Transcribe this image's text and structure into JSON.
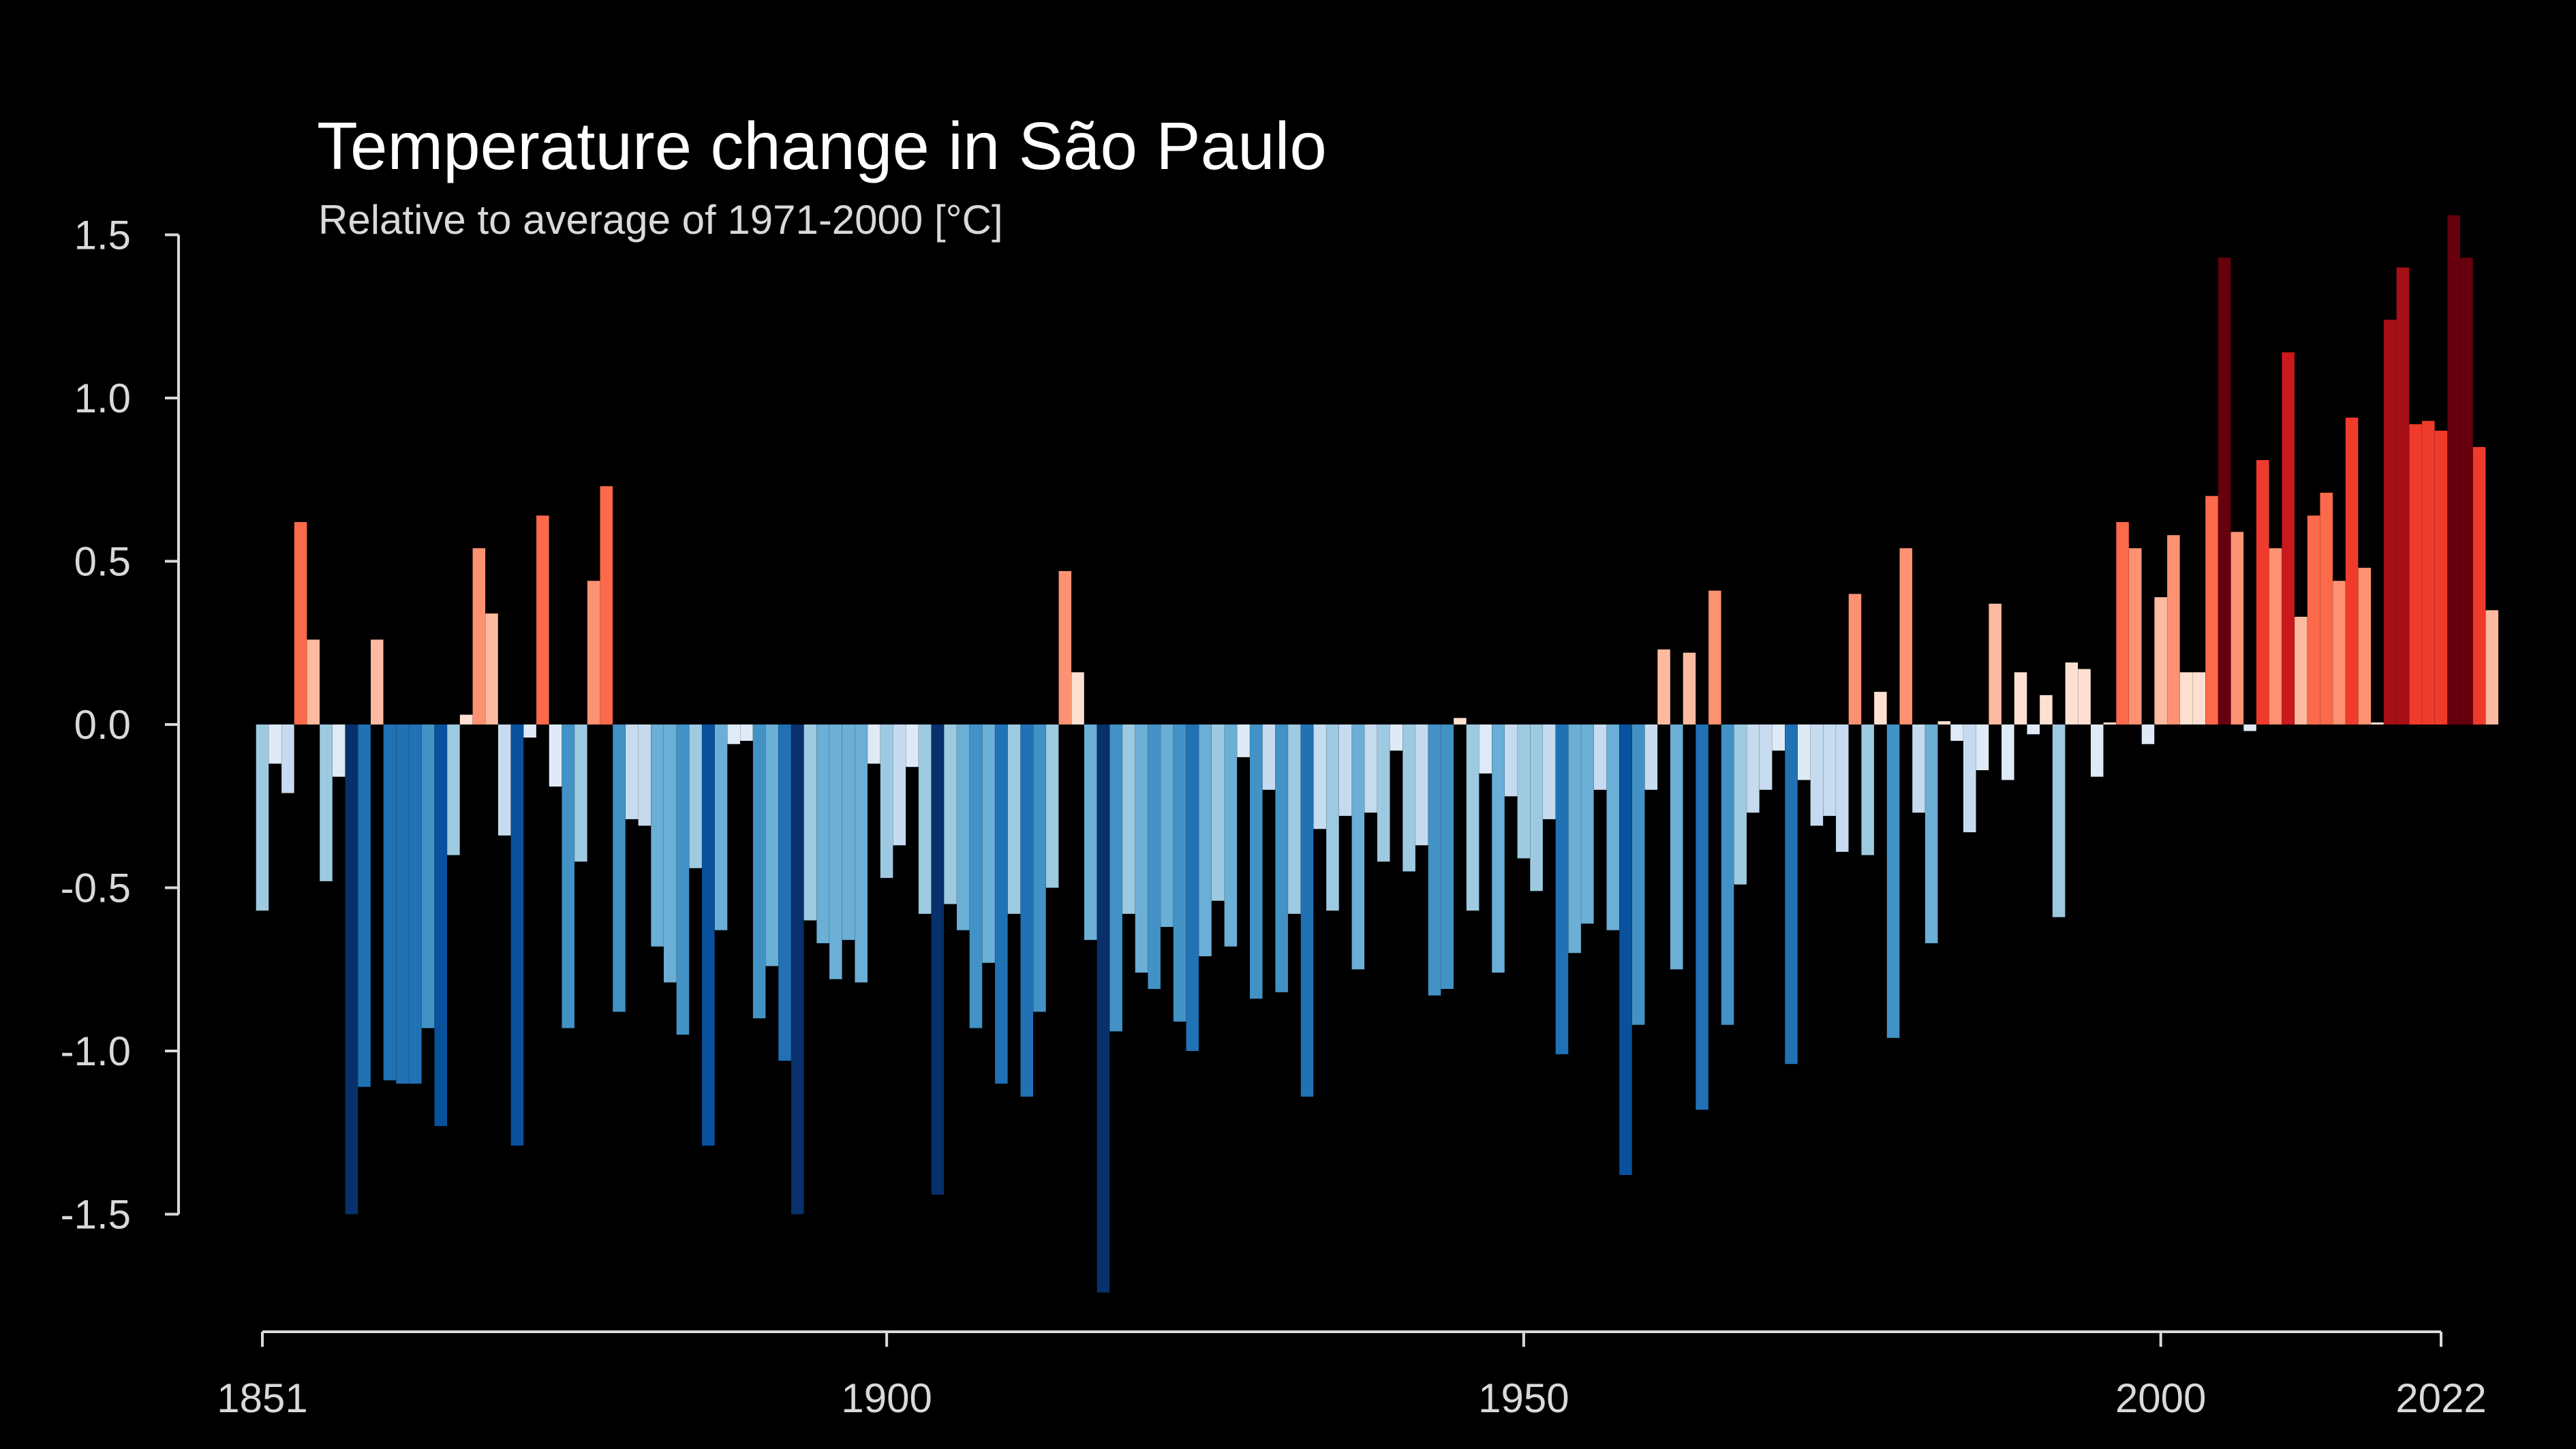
{
  "chart_data": {
    "type": "bar",
    "title": "Temperature change in São Paulo",
    "subtitle": "Relative to average of 1971-2000  [°C]",
    "xlabel": "",
    "ylabel": "",
    "x_start": 1851,
    "x_end": 2022,
    "ylim": [
      -1.75,
      1.6
    ],
    "yticks": [
      1.5,
      1.0,
      0.5,
      0.0,
      -0.5,
      -1.0,
      -1.5
    ],
    "ytick_labels": [
      "1.5",
      "1.0",
      "0.5",
      "0.0",
      "-0.5",
      "-1.0",
      "-1.5"
    ],
    "xticks": [
      1851,
      1900,
      1950,
      2000,
      2022
    ],
    "xtick_labels": [
      "1851",
      "1900",
      "1950",
      "2000",
      "2022"
    ],
    "grid": false,
    "values": [
      -0.57,
      -0.12,
      -0.21,
      0.62,
      0.26,
      -0.48,
      -0.16,
      -1.5,
      -1.11,
      0.26,
      -1.09,
      -1.1,
      -1.1,
      -0.93,
      -1.23,
      -0.4,
      0.03,
      0.54,
      0.34,
      -0.34,
      -1.29,
      -0.04,
      0.64,
      -0.19,
      -0.93,
      -0.42,
      0.44,
      0.73,
      -0.88,
      -0.29,
      -0.31,
      -0.68,
      -0.79,
      -0.95,
      -0.44,
      -1.29,
      -0.63,
      -0.06,
      -0.05,
      -0.9,
      -0.74,
      -1.03,
      -1.5,
      -0.6,
      -0.67,
      -0.78,
      -0.66,
      -0.79,
      -0.12,
      -0.47,
      -0.37,
      -0.13,
      -0.58,
      -1.44,
      -0.55,
      -0.63,
      -0.93,
      -0.73,
      -1.1,
      -0.58,
      -1.14,
      -0.88,
      -0.5,
      0.47,
      0.16,
      -0.66,
      -1.74,
      -0.94,
      -0.58,
      -0.76,
      -0.81,
      -0.62,
      -0.91,
      -1.0,
      -0.71,
      -0.54,
      -0.68,
      -0.1,
      -0.84,
      -0.2,
      -0.82,
      -0.58,
      -1.14,
      -0.32,
      -0.57,
      -0.28,
      -0.75,
      -0.27,
      -0.42,
      -0.08,
      -0.45,
      -0.37,
      -0.83,
      -0.81,
      0.02,
      -0.57,
      -0.15,
      -0.76,
      -0.22,
      -0.41,
      -0.51,
      -0.29,
      -1.01,
      -0.7,
      -0.61,
      -0.2,
      -0.63,
      -1.38,
      -0.92,
      -0.2,
      0.23,
      -0.75,
      0.22,
      -1.18,
      0.41,
      -0.92,
      -0.49,
      -0.27,
      -0.2,
      -0.08,
      -1.04,
      -0.17,
      -0.31,
      -0.28,
      -0.39,
      0.4,
      -0.4,
      0.1,
      -0.96,
      0.54,
      -0.27,
      -0.67,
      0.01,
      -0.05,
      -0.33,
      -0.14,
      0.37,
      -0.17,
      0.16,
      -0.03,
      0.09,
      -0.59,
      0.19,
      0.17,
      -0.16,
      0.0,
      0.62,
      0.54,
      -0.06,
      0.39,
      0.58,
      0.16,
      0.16,
      0.7,
      1.43,
      0.59,
      -0.02,
      0.81,
      0.54,
      1.14,
      0.33,
      0.64,
      0.71,
      0.44,
      0.94,
      0.48,
      0.0,
      1.24,
      1.4,
      0.92,
      0.93,
      0.9,
      1.56,
      1.43,
      0.85,
      0.35
    ]
  }
}
